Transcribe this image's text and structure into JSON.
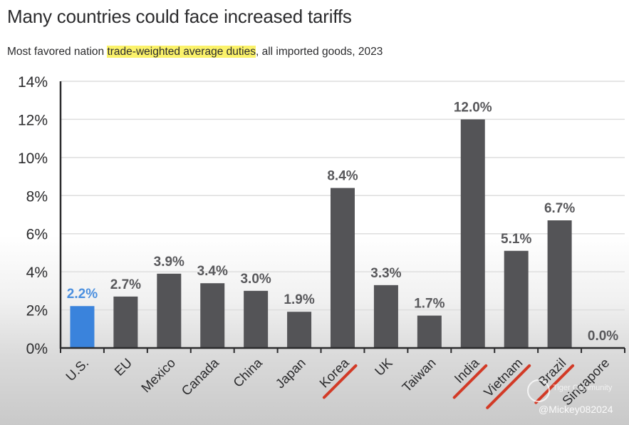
{
  "header": {
    "title": "Many countries could face increased tariffs",
    "subtitle_before": "Most favored nation ",
    "subtitle_highlight": "trade-weighted average duties",
    "subtitle_after": ", all imported goods, 2023"
  },
  "colors": {
    "bar_default": "#545457",
    "bar_highlight": "#3a83dc",
    "label_default": "#58585b",
    "label_highlight": "#4a8fdf",
    "strike": "#d23a26",
    "highlight_bg": "#fbf26a"
  },
  "chart_data": {
    "type": "bar",
    "title": "Many countries could face increased tariffs",
    "subtitle": "Most favored nation trade-weighted average duties, all imported goods, 2023",
    "xlabel": "",
    "ylabel": "",
    "ylim": [
      0,
      14
    ],
    "yticks": [
      0,
      2,
      4,
      6,
      8,
      10,
      12,
      14
    ],
    "ytick_labels": [
      "0%",
      "2%",
      "4%",
      "6%",
      "8%",
      "10%",
      "12%",
      "14%"
    ],
    "grid": true,
    "categories": [
      "U.S.",
      "EU",
      "Mexico",
      "Canada",
      "China",
      "Japan",
      "Korea",
      "UK",
      "Taiwan",
      "India",
      "Vietnam",
      "Brazil",
      "Singapore"
    ],
    "values": [
      2.2,
      2.7,
      3.9,
      3.4,
      3.0,
      1.9,
      8.4,
      3.3,
      1.7,
      12.0,
      5.1,
      6.7,
      0.0
    ],
    "data_labels": [
      "2.2%",
      "2.7%",
      "3.9%",
      "3.4%",
      "3.0%",
      "1.9%",
      "8.4%",
      "3.3%",
      "1.7%",
      "12.0%",
      "5.1%",
      "6.7%",
      "0.0%"
    ],
    "highlighted": [
      "U.S."
    ],
    "underlined_annotations": [
      "Korea",
      "India",
      "Vietnam",
      "Brazil"
    ]
  },
  "watermark": {
    "brand": "Tiger Community",
    "handle": "@Mickey082024"
  }
}
